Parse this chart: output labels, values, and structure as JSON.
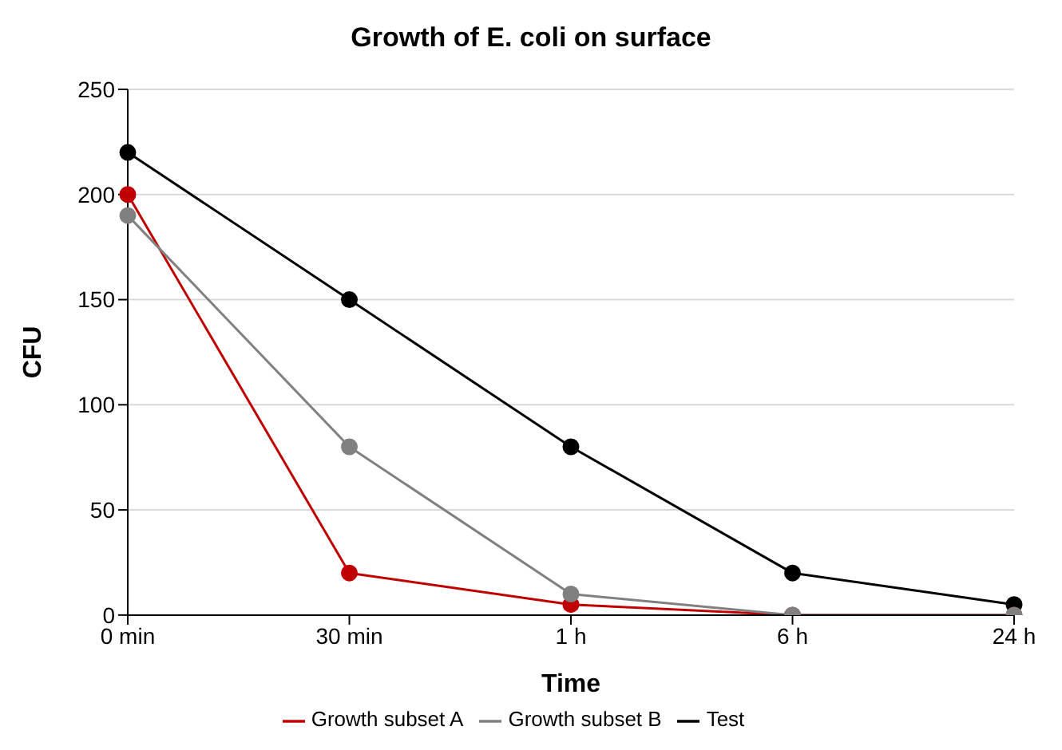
{
  "chart_data": {
    "type": "line",
    "title": "Growth of E. coli on surface",
    "xlabel": "Time",
    "ylabel": "CFU",
    "categories": [
      "0 min",
      "30 min",
      "1 h",
      "6 h",
      "24 h"
    ],
    "series": [
      {
        "name": "Test",
        "color": "#000000",
        "values": [
          220,
          150,
          80,
          20,
          5
        ]
      },
      {
        "name": "Growth subset A",
        "color": "#c00000",
        "values": [
          200,
          20,
          5,
          0,
          0
        ]
      },
      {
        "name": "Growth subset B",
        "color": "#808080",
        "values": [
          190,
          80,
          10,
          0,
          0
        ]
      }
    ],
    "ylim": [
      0,
      250
    ],
    "yticks": [
      0,
      50,
      100,
      150,
      200,
      250
    ],
    "grid": "y",
    "legend": "bottom",
    "marker": "circle",
    "line_style": "solid"
  }
}
